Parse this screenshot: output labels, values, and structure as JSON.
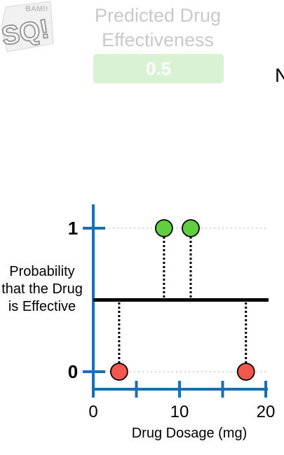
{
  "header": {
    "title_line1": "Predicted Drug",
    "title_line2": "Effectiveness",
    "value": "0.5",
    "side_letter": "N"
  },
  "colors": {
    "axis": "#1a6fb4",
    "positive": "#5fcf3f",
    "negative": "#f0584e",
    "threshold": "#000000",
    "title_gray": "#c9c9c9",
    "value_box": "#d9f2d3"
  },
  "chart_data": {
    "type": "scatter",
    "xlabel": "Drug Dosage (mg)",
    "ylabel": "Probability that the Drug is Effective",
    "xlim": [
      0,
      20
    ],
    "ylim": [
      0,
      1
    ],
    "x_ticks": [
      0,
      5,
      10,
      15,
      20
    ],
    "x_tick_labels": [
      "0",
      "10",
      "20"
    ],
    "x_tick_label_values": [
      0,
      10,
      20
    ],
    "y_tick_labels": [
      "0",
      "1"
    ],
    "threshold": 0.5,
    "points": [
      {
        "x": 3,
        "y": 0,
        "class": "not effective"
      },
      {
        "x": 8.2,
        "y": 1,
        "class": "effective"
      },
      {
        "x": 11.3,
        "y": 1,
        "class": "effective"
      },
      {
        "x": 17.7,
        "y": 0,
        "class": "not effective"
      }
    ]
  }
}
